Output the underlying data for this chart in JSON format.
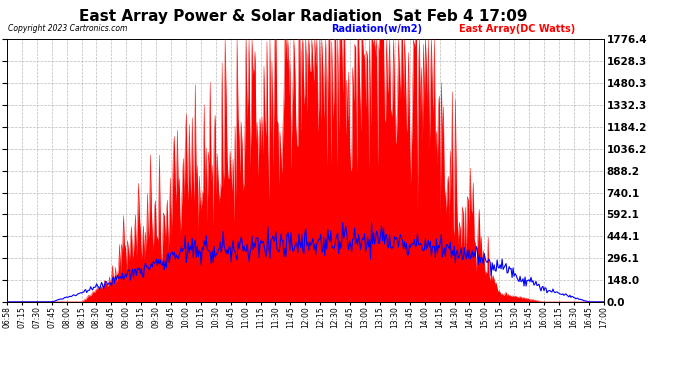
{
  "title": "East Array Power & Solar Radiation  Sat Feb 4 17:09",
  "copyright": "Copyright 2023 Cartronics.com",
  "legend_radiation": "Radiation(w/m2)",
  "legend_east": "East Array(DC Watts)",
  "yticks": [
    0.0,
    148.0,
    296.1,
    444.1,
    592.1,
    740.1,
    888.2,
    1036.2,
    1184.2,
    1332.3,
    1480.3,
    1628.3,
    1776.4
  ],
  "ymax": 1776.4,
  "ymin": 0.0,
  "background_color": "#ffffff",
  "plot_bg_color": "#ffffff",
  "grid_color": "#aaaaaa",
  "red_color": "#ff0000",
  "blue_color": "#0000ff",
  "title_fontsize": 11,
  "xtick_fontsize": 5.5,
  "ytick_fontsize": 7.5,
  "x_labels": [
    "06:58",
    "07:15",
    "07:30",
    "07:45",
    "08:00",
    "08:15",
    "08:30",
    "08:45",
    "09:00",
    "09:15",
    "09:30",
    "09:45",
    "10:00",
    "10:15",
    "10:30",
    "10:45",
    "11:00",
    "11:15",
    "11:30",
    "11:45",
    "12:00",
    "12:15",
    "12:30",
    "12:45",
    "13:00",
    "13:15",
    "13:30",
    "13:45",
    "14:00",
    "14:15",
    "14:30",
    "14:45",
    "15:00",
    "15:15",
    "15:30",
    "15:45",
    "16:00",
    "16:15",
    "16:30",
    "16:45",
    "17:00"
  ]
}
